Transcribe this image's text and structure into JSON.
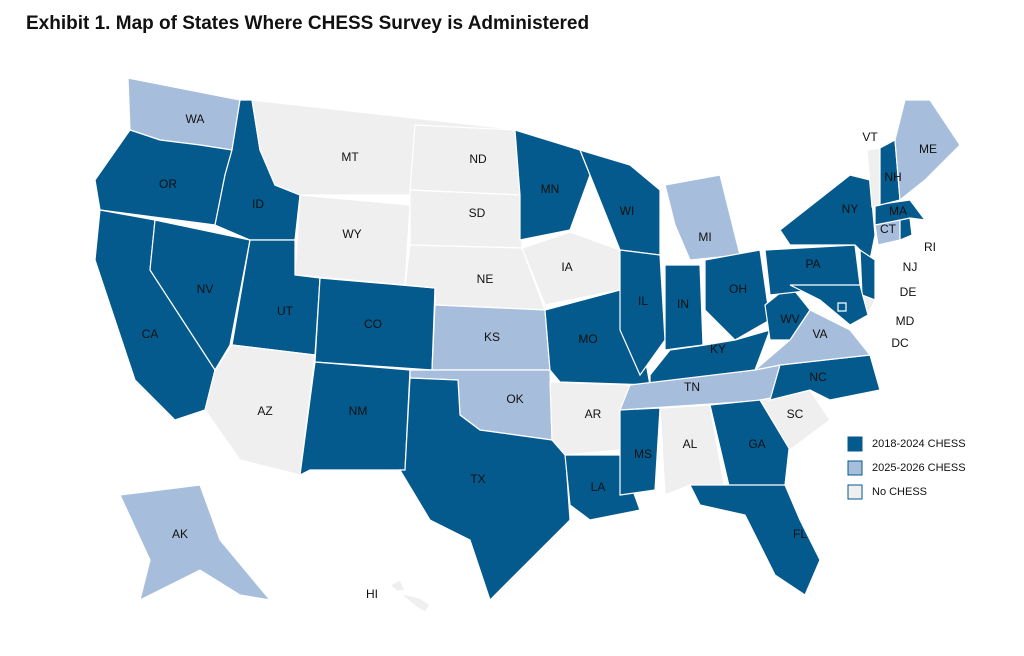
{
  "title": "Exhibit 1. Map of States Where CHESS Survey is Administered",
  "legend": [
    {
      "label": "2018-2024 CHESS",
      "color": "#045a8d"
    },
    {
      "label": "2025-2026 CHESS",
      "color": "#a6bddb"
    },
    {
      "label": "No CHESS",
      "color": "#efefef"
    }
  ],
  "states": [
    {
      "label": "WA",
      "group": 1
    },
    {
      "label": "OR",
      "group": 0
    },
    {
      "label": "CA",
      "group": 0
    },
    {
      "label": "NV",
      "group": 0
    },
    {
      "label": "ID",
      "group": 0
    },
    {
      "label": "MT",
      "group": 2
    },
    {
      "label": "WY",
      "group": 2
    },
    {
      "label": "UT",
      "group": 0
    },
    {
      "label": "AZ",
      "group": 2
    },
    {
      "label": "CO",
      "group": 0
    },
    {
      "label": "NM",
      "group": 0
    },
    {
      "label": "ND",
      "group": 2
    },
    {
      "label": "SD",
      "group": 2
    },
    {
      "label": "NE",
      "group": 2
    },
    {
      "label": "KS",
      "group": 1
    },
    {
      "label": "OK",
      "group": 1
    },
    {
      "label": "TX",
      "group": 0
    },
    {
      "label": "MN",
      "group": 0
    },
    {
      "label": "IA",
      "group": 2
    },
    {
      "label": "MO",
      "group": 0
    },
    {
      "label": "AR",
      "group": 2
    },
    {
      "label": "LA",
      "group": 0
    },
    {
      "label": "WI",
      "group": 0
    },
    {
      "label": "IL",
      "group": 0
    },
    {
      "label": "MI",
      "group": 1
    },
    {
      "label": "IN",
      "group": 0
    },
    {
      "label": "OH",
      "group": 0
    },
    {
      "label": "KY",
      "group": 0
    },
    {
      "label": "TN",
      "group": 1
    },
    {
      "label": "MS",
      "group": 0
    },
    {
      "label": "AL",
      "group": 2
    },
    {
      "label": "GA",
      "group": 0
    },
    {
      "label": "FL",
      "group": 0
    },
    {
      "label": "SC",
      "group": 2
    },
    {
      "label": "NC",
      "group": 0
    },
    {
      "label": "VA",
      "group": 1
    },
    {
      "label": "WV",
      "group": 0
    },
    {
      "label": "PA",
      "group": 0
    },
    {
      "label": "NY",
      "group": 0
    },
    {
      "label": "NJ",
      "group": 0
    },
    {
      "label": "DE",
      "group": 2
    },
    {
      "label": "MD",
      "group": 0
    },
    {
      "label": "DC",
      "group": 0
    },
    {
      "label": "CT",
      "group": 1
    },
    {
      "label": "RI",
      "group": 0
    },
    {
      "label": "MA",
      "group": 0
    },
    {
      "label": "VT",
      "group": 2
    },
    {
      "label": "NH",
      "group": 0
    },
    {
      "label": "ME",
      "group": 1
    },
    {
      "label": "AK",
      "group": 1
    },
    {
      "label": "HI",
      "group": 2
    }
  ]
}
